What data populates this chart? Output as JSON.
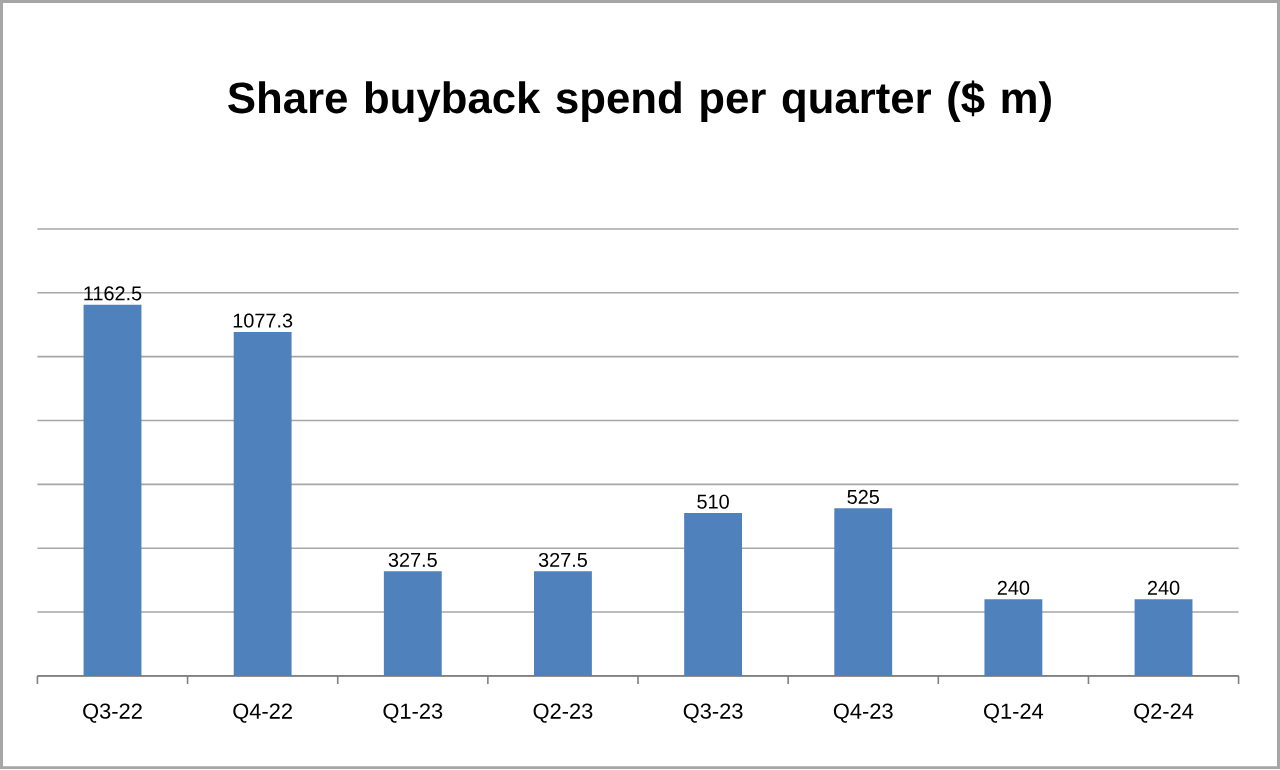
{
  "chart_data": {
    "type": "bar",
    "title": "Share buyback spend per quarter ($ m)",
    "categories": [
      "Q3-22",
      "Q4-22",
      "Q1-23",
      "Q2-23",
      "Q3-23",
      "Q4-23",
      "Q1-24",
      "Q2-24"
    ],
    "values": [
      1162.5,
      1077.3,
      327.5,
      327.5,
      510,
      525,
      240,
      240
    ],
    "color": "#4f81bd",
    "ylim": [
      0,
      1400
    ],
    "yticks": [
      {
        "value": 0,
        "label": null
      },
      {
        "value": 200,
        "label": null
      },
      {
        "value": 400,
        "label": null
      },
      {
        "value": 600,
        "label": null
      },
      {
        "value": 800,
        "label": null
      },
      {
        "value": 1000,
        "label": null
      },
      {
        "value": 1200,
        "label": null
      },
      {
        "value": 1400,
        "label": null
      }
    ],
    "tick_labels": "x",
    "grid": "y",
    "data_labels": true
  }
}
